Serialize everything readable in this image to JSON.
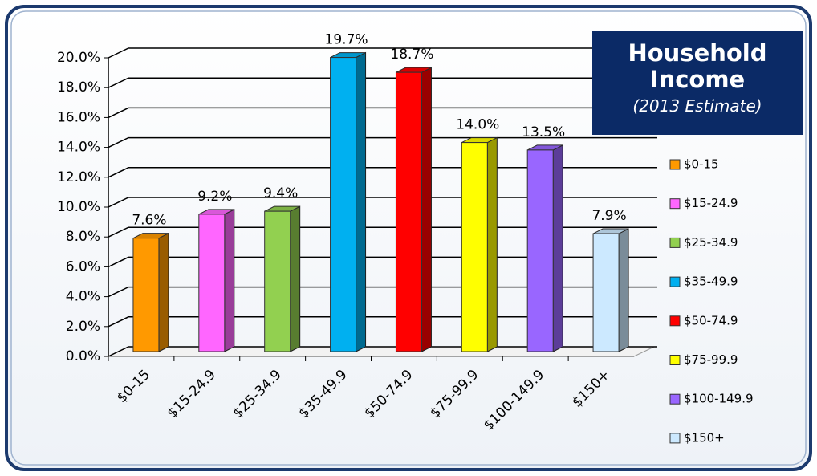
{
  "chart_data": {
    "type": "bar3d",
    "title": "Household Income",
    "subtitle": "(2013 Estimate)",
    "categories": [
      "$0-15",
      "$15-24.9",
      "$25-34.9",
      "$35-49.9",
      "$50-74.9",
      "$75-99.9",
      "$100-149.9",
      "$150+"
    ],
    "values": [
      7.6,
      9.2,
      9.4,
      19.7,
      18.7,
      14.0,
      13.5,
      7.9
    ],
    "value_labels": [
      "7.6%",
      "9.2%",
      "9.4%",
      "19.7%",
      "18.7%",
      "14.0%",
      "13.5%",
      "7.9%"
    ],
    "colors": [
      "#ff9900",
      "#ff66ff",
      "#92d050",
      "#00b0f0",
      "#ff0000",
      "#ffff00",
      "#9966ff",
      "#cce9ff"
    ],
    "ylim": [
      0,
      20
    ],
    "yticks": [
      {
        "value": 0,
        "label": "0.0%"
      },
      {
        "value": 2,
        "label": "2.0%"
      },
      {
        "value": 4,
        "label": "4.0%"
      },
      {
        "value": 6,
        "label": "6.0%"
      },
      {
        "value": 8,
        "label": "8.0%"
      },
      {
        "value": 10,
        "label": "10.0%"
      },
      {
        "value": 12,
        "label": "12.0%"
      },
      {
        "value": 14,
        "label": "14.0%"
      },
      {
        "value": 16,
        "label": "16.0%"
      },
      {
        "value": 18,
        "label": "18.0%"
      },
      {
        "value": 20,
        "label": "20.0%"
      }
    ],
    "grid": true,
    "legend": "right"
  }
}
